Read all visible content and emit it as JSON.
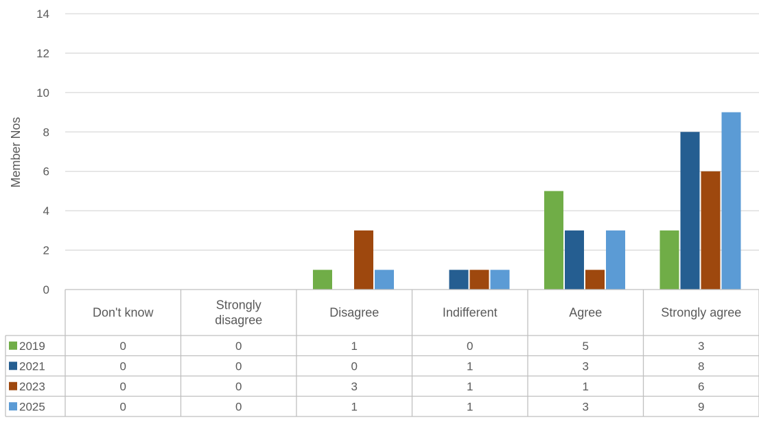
{
  "chart_data": {
    "type": "bar",
    "ylabel": "Member Nos",
    "ylim": [
      0,
      14
    ],
    "yticks": [
      0,
      2,
      4,
      6,
      8,
      10,
      12,
      14
    ],
    "grid": true,
    "legend": "data-table-left",
    "categories": [
      "Don't know",
      "Strongly disagree",
      "Disagree",
      "Indifferent",
      "Agree",
      "Strongly agree"
    ],
    "category_lines": [
      [
        "Don't know"
      ],
      [
        "Strongly",
        "disagree"
      ],
      [
        "Disagree"
      ],
      [
        "Indifferent"
      ],
      [
        "Agree"
      ],
      [
        "Strongly agree"
      ]
    ],
    "series": [
      {
        "name": "2019",
        "color": "#70ad47",
        "values": [
          0,
          0,
          1,
          0,
          5,
          3
        ]
      },
      {
        "name": "2021",
        "color": "#255e91",
        "values": [
          0,
          0,
          0,
          1,
          3,
          8
        ]
      },
      {
        "name": "2023",
        "color": "#9e480e",
        "values": [
          0,
          0,
          3,
          1,
          1,
          6
        ]
      },
      {
        "name": "2025",
        "color": "#5b9bd5",
        "values": [
          0,
          0,
          1,
          1,
          3,
          9
        ]
      }
    ]
  }
}
